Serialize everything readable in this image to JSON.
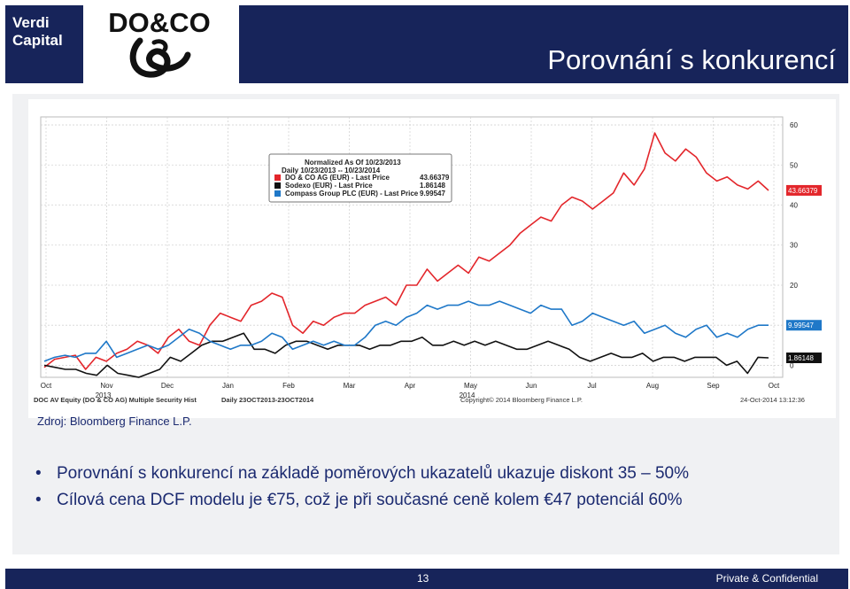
{
  "branding": {
    "line1": "Verdi",
    "line2": "Capital",
    "logo_text": "DO&CO"
  },
  "header": {
    "title": "Porovnání s konkurencí"
  },
  "chart_data": {
    "type": "line",
    "legend": {
      "header1": "Normalized As Of 10/23/2013",
      "header2": "Daily 10/23/2013 -- 10/23/2014"
    },
    "series": [
      {
        "name": "DO & CO AG (EUR) - Last Price",
        "label": "DO & CO AG (EUR) - Last Price",
        "last_price": "43.66379",
        "color": "#e3262b",
        "values": [
          -0.5,
          1.5,
          2,
          2.5,
          -1,
          2,
          1,
          3,
          4,
          6,
          5,
          3,
          7,
          9,
          6,
          5,
          10,
          13,
          12,
          11,
          15,
          16,
          18,
          17,
          10,
          8,
          11,
          10,
          12,
          13,
          13,
          15,
          16,
          17,
          15,
          20,
          20,
          24,
          21,
          23,
          25,
          23,
          27,
          26,
          28,
          30,
          33,
          35,
          37,
          36,
          40,
          42,
          41,
          39,
          41,
          43,
          48,
          45,
          49,
          58,
          53,
          51,
          54,
          52,
          48,
          46,
          47,
          45,
          44,
          46,
          43.66
        ]
      },
      {
        "name": "Sodexo (EUR) - Last Price",
        "label": "Sodexo (EUR) - Last Price",
        "last_price": "1.86148",
        "color": "#111111",
        "values": [
          0,
          -0.5,
          -1,
          -1,
          -2,
          -2.5,
          0,
          -2,
          -2.5,
          -3,
          -2,
          -1,
          2,
          1,
          3,
          5,
          6,
          6,
          7,
          8,
          4,
          4,
          3,
          5,
          6,
          6,
          5,
          4,
          5,
          5,
          5,
          4,
          5,
          5,
          6,
          6,
          7,
          5,
          5,
          6,
          5,
          6,
          5,
          6,
          5,
          4,
          4,
          5,
          6,
          5,
          4,
          2,
          1,
          2,
          3,
          2,
          2,
          3,
          1,
          2,
          2,
          1,
          2,
          2,
          2,
          0,
          1,
          -2,
          2,
          1.86
        ]
      },
      {
        "name": "Compass Group PLC (EUR) - Last Price",
        "label": "Compass Group PLC (EUR) - Last Price",
        "last_price": "9.99547",
        "color": "#1f78c8",
        "values": [
          1,
          2,
          2.5,
          2,
          3,
          3,
          6,
          2,
          3,
          4,
          5,
          4,
          5,
          7,
          9,
          8,
          6,
          5,
          4,
          5,
          5,
          6,
          8,
          7,
          4,
          5,
          6,
          5,
          6,
          5,
          5,
          7,
          10,
          11,
          10,
          12,
          13,
          15,
          14,
          15,
          15,
          16,
          15,
          15,
          16,
          15,
          14,
          13,
          15,
          14,
          14,
          10,
          11,
          13,
          12,
          11,
          10,
          11,
          8,
          9,
          10,
          8,
          7,
          9,
          10,
          7,
          8,
          7,
          9,
          10,
          9.99
        ]
      }
    ],
    "x_tick_labels": [
      "Oct",
      "Nov",
      "Dec",
      "Jan",
      "Feb",
      "Mar",
      "Apr",
      "May",
      "Jun",
      "Jul",
      "Aug",
      "Sep",
      "Oct"
    ],
    "x_year_labels": [
      "2013",
      "2014"
    ],
    "y_tick_labels": [
      "60",
      "50",
      "40",
      "30",
      "20",
      "10",
      "0"
    ],
    "ylim": [
      -3,
      62
    ],
    "footer_left1": "DOC AV Equity (DO & CO AG) Multiple Security Hist",
    "footer_left2": "Daily 23OCT2013-23OCT2014",
    "copyright": "Copyright© 2014 Bloomberg Finance L.P.",
    "timestamp": "24-Oct-2014 13:12:36",
    "grid": "on"
  },
  "source": "Zdroj: Bloomberg Finance L.P.",
  "bullets": [
    "Porovnání s konkurencí na základě poměrových ukazatelů ukazuje diskont 35 – 50%",
    "Cílová cena DCF modelu je €75, což je při současné ceně kolem €47 potenciál 60%"
  ],
  "bullet_symbol": "•",
  "footer": {
    "page": "13",
    "confidential": "Private & Confidential"
  }
}
